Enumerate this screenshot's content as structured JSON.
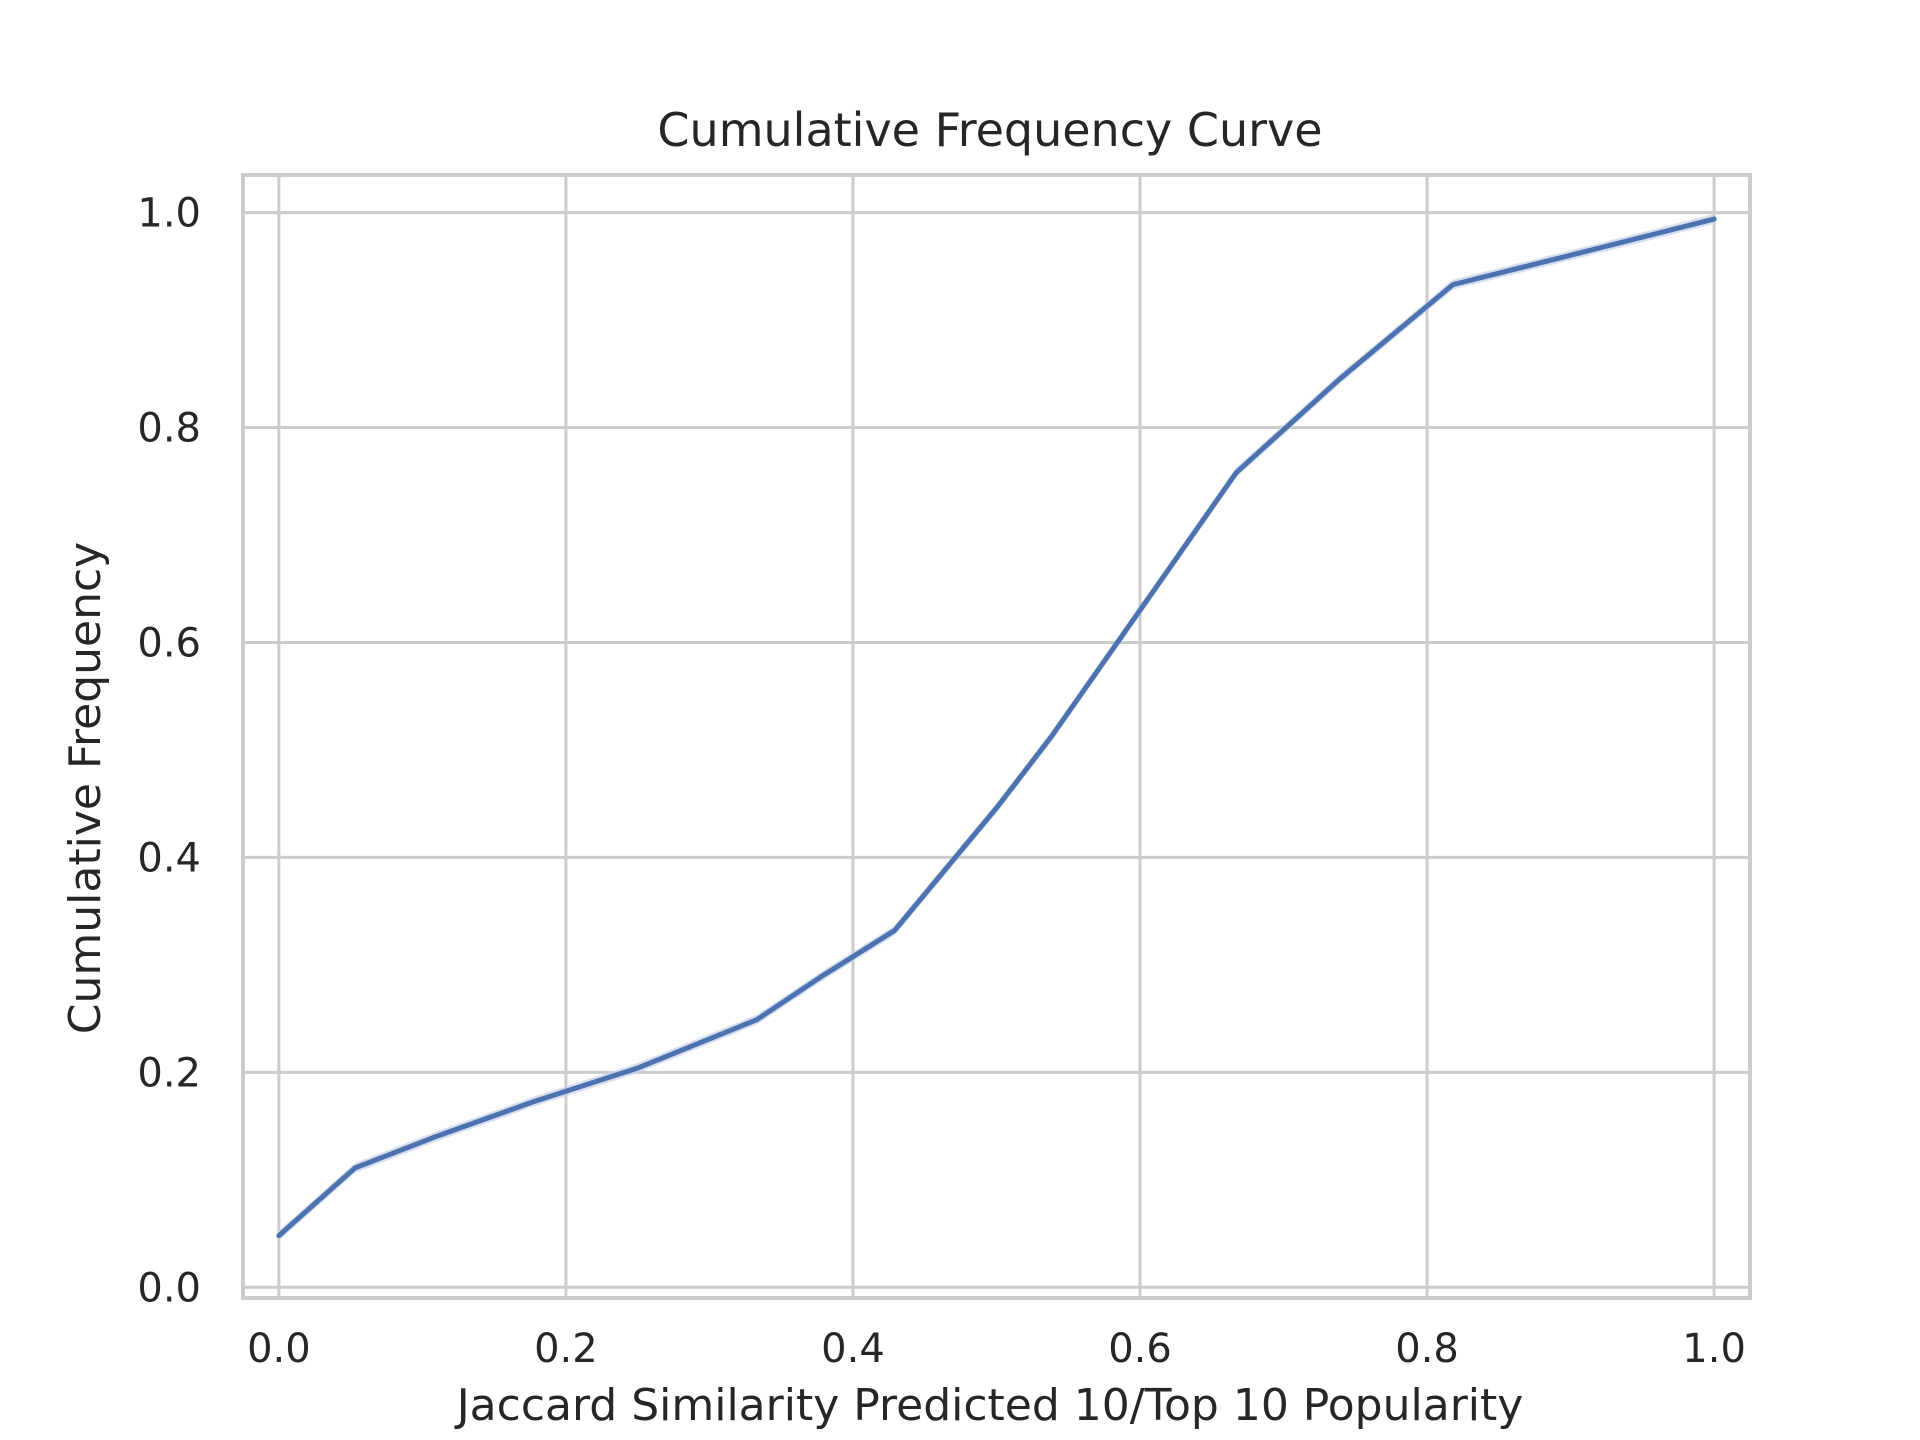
{
  "chart_data": {
    "type": "line",
    "title": "Cumulative Frequency Curve",
    "xlabel": "Jaccard Similarity Predicted 10/Top 10 Popularity",
    "ylabel": "Cumulative Frequency",
    "xlim": [
      -0.025,
      1.025
    ],
    "ylim": [
      -0.01,
      1.035
    ],
    "xticks": [
      0.0,
      0.2,
      0.4,
      0.6,
      0.8,
      1.0
    ],
    "xtick_labels": [
      "0.0",
      "0.2",
      "0.4",
      "0.6",
      "0.8",
      "1.0"
    ],
    "yticks": [
      0.0,
      0.2,
      0.4,
      0.6,
      0.8,
      1.0
    ],
    "ytick_labels": [
      "0.0",
      "0.2",
      "0.4",
      "0.6",
      "0.8",
      "1.0"
    ],
    "grid": true,
    "legend": "none",
    "series": [
      {
        "color": "#4c72b0",
        "band_color": "#c6d1e8",
        "x": [
          0.0,
          0.053,
          0.111,
          0.176,
          0.25,
          0.333,
          0.379,
          0.429,
          0.5,
          0.538,
          0.6,
          0.667,
          0.739,
          0.818,
          0.905,
          1.0
        ],
        "y": [
          0.048,
          0.111,
          0.141,
          0.172,
          0.204,
          0.249,
          0.29,
          0.332,
          0.446,
          0.512,
          0.63,
          0.758,
          0.845,
          0.933,
          0.962,
          0.994
        ]
      }
    ]
  }
}
